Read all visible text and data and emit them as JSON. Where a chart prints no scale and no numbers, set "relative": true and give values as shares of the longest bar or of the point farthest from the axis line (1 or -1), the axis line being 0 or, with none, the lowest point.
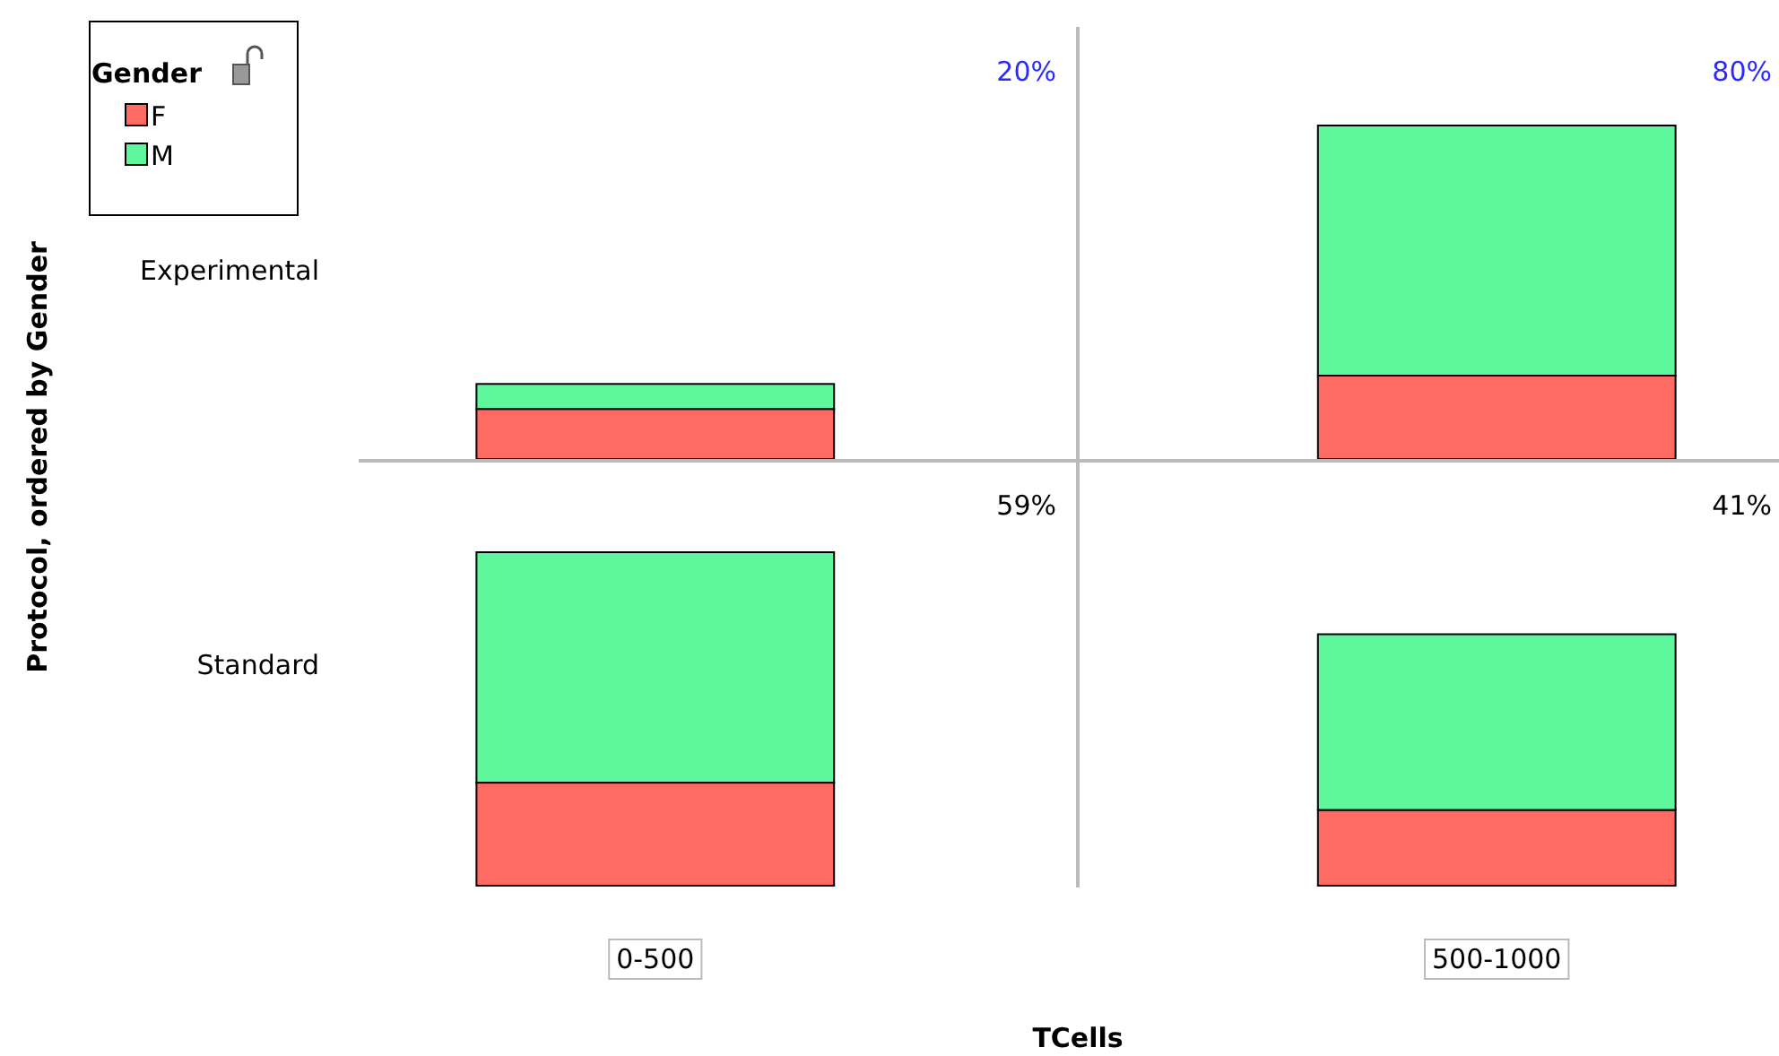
{
  "chart_data": [
    {
      "type": "bar",
      "stacked": true,
      "relative": true,
      "title": "Experimental",
      "ylabel": "Protocol, ordered by Gender",
      "legend_title": "Gender",
      "legend": "top left",
      "tick_labels": false,
      "categories": [
        null,
        null
      ],
      "series": [
        {
          "name": "F",
          "color": "#ff6a63",
          "values": [
            0.15,
            0.25
          ]
        },
        {
          "name": "M",
          "color": "#5ef79c",
          "values": [
            0.075,
            0.75
          ]
        }
      ],
      "annotations": [
        "20%",
        "80%"
      ]
    },
    {
      "type": "bar",
      "stacked": true,
      "relative": true,
      "title": "Standard",
      "xlabel": "TCells",
      "tick_labels": "x",
      "categories": [
        "0-500",
        "500-1000"
      ],
      "series": [
        {
          "color": "#ff6a63",
          "values": [
            0.309,
            0.227
          ]
        },
        {
          "color": "#5ef79c",
          "values": [
            0.691,
            0.527
          ]
        }
      ],
      "annotations": [
        "59%",
        "41%"
      ]
    }
  ]
}
